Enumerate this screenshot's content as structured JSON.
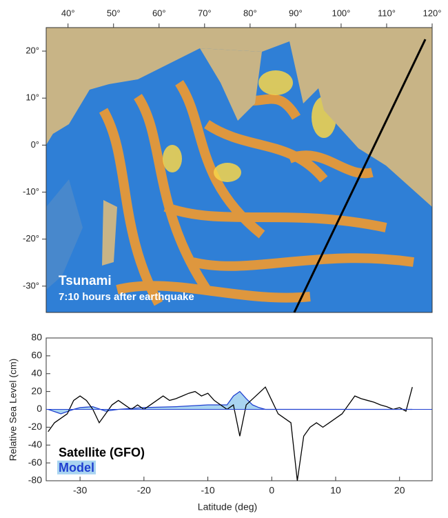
{
  "chart_data": [
    {
      "type": "map",
      "annotations": [
        "Tsunami",
        "7:10 hours after earthquake"
      ],
      "xlim": [
        35.2,
        120
      ],
      "ylim": [
        -35.6,
        25
      ],
      "xticks": [
        {
          "value": 40,
          "label": "40°"
        },
        {
          "value": 50,
          "label": "50°"
        },
        {
          "value": 60,
          "label": "60°"
        },
        {
          "value": 70,
          "label": "70°"
        },
        {
          "value": 80,
          "label": "80°"
        },
        {
          "value": 90,
          "label": "90°"
        },
        {
          "value": 100,
          "label": "100°"
        },
        {
          "value": 110,
          "label": "110°"
        },
        {
          "value": 120,
          "label": "120°"
        }
      ],
      "yticks": [
        {
          "value": 20,
          "label": "20°"
        },
        {
          "value": 10,
          "label": "10°"
        },
        {
          "value": 0,
          "label": "0°"
        },
        {
          "value": -10,
          "label": "-10°"
        },
        {
          "value": -20,
          "label": "-20°"
        },
        {
          "value": -30,
          "label": "-30°"
        }
      ],
      "track": {
        "x": [
          89.7,
          118.5
        ],
        "y": [
          -35.6,
          22.5
        ],
        "color": "#000000"
      }
    },
    {
      "type": "line",
      "xlabel": "Latitude (deg)",
      "ylabel": "Relative Sea Level (cm)",
      "xlim": [
        -35.3,
        25.1
      ],
      "ylim": [
        -80,
        80
      ],
      "xticks": [
        -30,
        -20,
        -10,
        0,
        10,
        20
      ],
      "yticks": [
        -80,
        -60,
        -40,
        -20,
        0,
        20,
        40,
        60,
        80
      ],
      "series": [
        {
          "name": "Model",
          "color": "#1f3fd0",
          "fill": "#a9d4f0",
          "x": [
            -35,
            -33,
            -31,
            -30,
            -28,
            -26,
            -24,
            -20,
            -15,
            -10,
            -7,
            -6,
            -5,
            -4,
            -3,
            -2,
            -1,
            0,
            5,
            10,
            15,
            20,
            22
          ],
          "values": [
            0,
            -5,
            0,
            2,
            3,
            -2,
            0,
            2,
            3,
            5,
            5,
            15,
            20,
            12,
            5,
            2,
            0,
            0,
            0,
            0,
            0,
            0,
            0
          ]
        },
        {
          "name": "Satellite (GFO)",
          "color": "#000000",
          "x": [
            -35,
            -34,
            -33,
            -32,
            -31,
            -30,
            -29,
            -28,
            -27,
            -26,
            -25,
            -24,
            -23,
            -22,
            -21,
            -20,
            -19,
            -18,
            -17,
            -16,
            -15,
            -14,
            -13,
            -12,
            -11,
            -10,
            -9,
            -8,
            -7,
            -6,
            -5,
            -4,
            -1,
            0,
            1,
            2,
            3,
            4,
            5,
            6,
            7,
            8,
            9,
            10,
            11,
            12,
            13,
            14,
            15,
            16,
            17,
            18,
            19,
            20,
            21,
            22
          ],
          "values": [
            -25,
            -15,
            -10,
            -5,
            10,
            15,
            10,
            0,
            -15,
            -5,
            5,
            10,
            5,
            0,
            5,
            0,
            5,
            10,
            15,
            10,
            12,
            15,
            18,
            20,
            15,
            18,
            10,
            5,
            0,
            5,
            -30,
            5,
            25,
            10,
            -5,
            -10,
            -15,
            -80,
            -30,
            -20,
            -15,
            -20,
            -15,
            -10,
            -5,
            5,
            15,
            12,
            10,
            8,
            5,
            3,
            0,
            2,
            -2,
            25
          ]
        }
      ]
    }
  ]
}
